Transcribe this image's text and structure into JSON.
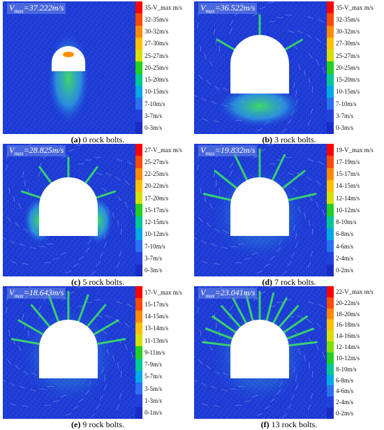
{
  "panels": [
    {
      "vmax": "=37.222m/s",
      "caption_letter": "(a)",
      "caption_text": " 0 rock bolts.",
      "bolts": 0,
      "legend": [
        "35-V_max m/s",
        "32-35m/s",
        "30-32m/s",
        "27-30m/s",
        "25-27m/s",
        "20-25m/s",
        "15-20m/s",
        "10-15m/s",
        "7-10m/s",
        "3-7m/s",
        "0-3m/s"
      ]
    },
    {
      "vmax": "=36.522m/s",
      "caption_letter": "(b)",
      "caption_text": " 3 rock bolts.",
      "bolts": 3,
      "legend": [
        "35-V_max m/s",
        "32-35m/s",
        "30-32m/s",
        "27-30m/s",
        "25-27m/s",
        "20-25m/s",
        "15-20m/s",
        "10-15m/s",
        "7-10m/s",
        "3-7m/s",
        "0-3m/s"
      ]
    },
    {
      "vmax": "=28.825m/s",
      "caption_letter": "(c)",
      "caption_text": " 5 rock bolts.",
      "bolts": 5,
      "legend": [
        "27-V_max m/s",
        "25-27m/s",
        "22-25m/s",
        "20-22m/s",
        "17-20m/s",
        "15-17m/s",
        "12-15m/s",
        "10-12m/s",
        "7-10m/s",
        "3-7m/s",
        "0-3m/s"
      ]
    },
    {
      "vmax": "=19.832m/s",
      "caption_letter": "(d)",
      "caption_text": " 7 rock bolts.",
      "bolts": 7,
      "legend": [
        "19-V_max m/s",
        "17-19m/s",
        "15-17m/s",
        "14-15m/s",
        "12-14m/s",
        "10-12m/s",
        "8-10m/s",
        "6-8m/s",
        "4-6m/s",
        "2-4m/s",
        "0-2m/s"
      ]
    },
    {
      "vmax": "=18.643m/s",
      "caption_letter": "(e)",
      "caption_text": " 9 rock bolts.",
      "bolts": 9,
      "legend": [
        "17-V_max m/s",
        "15-17m/s",
        "14-15m/s",
        "13-14m/s",
        "11-13m/s",
        "9-11m/s",
        "7-9m/s",
        "5-7m/s",
        "3-5m/s",
        "1-3m/s",
        "0-1m/s"
      ]
    },
    {
      "vmax": "=23.041m/s",
      "caption_letter": "(f)",
      "caption_text": " 13 rock bolts.",
      "bolts": 13,
      "legend": [
        "22-V_max m/s",
        "20-22m/s",
        "18-20m/s",
        "16-18m/s",
        "14-16m/s",
        "12-14m/s",
        "10-12m/s",
        "8-10m/s",
        "6-8m/s",
        "4-6m/s",
        "2-4m/s",
        "0-2m/s"
      ]
    }
  ],
  "colors": {
    "scale": [
      "#ff0000",
      "#ff4a00",
      "#ff8a00",
      "#ffc000",
      "#d6e000",
      "#7fe000",
      "#22d020",
      "#00c896",
      "#00a8e8",
      "#2a70f0",
      "#2240e0",
      "#1a2cc8"
    ],
    "background": "#1c3bd8",
    "tunnel": "#ffffff"
  },
  "labels": {
    "vmax_symbol": "V",
    "vmax_sub": "max"
  }
}
